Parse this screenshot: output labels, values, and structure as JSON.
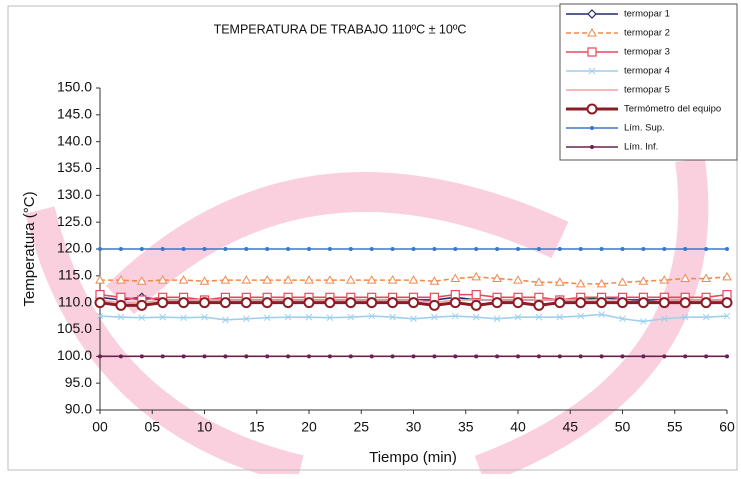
{
  "chart_data": {
    "type": "line",
    "title": "TEMPERATURA DE TRABAJO  110ºC ± 10ºC",
    "x_label": "Tiempo (min)",
    "y_label": "Temperatura (°C)",
    "x": [
      0,
      2,
      4,
      6,
      8,
      10,
      12,
      14,
      16,
      18,
      20,
      22,
      24,
      26,
      28,
      30,
      32,
      34,
      36,
      38,
      40,
      42,
      44,
      46,
      48,
      50,
      52,
      54,
      56,
      58,
      60
    ],
    "xlim": [
      0,
      60
    ],
    "xticks": [
      {
        "value": 0,
        "label": "00"
      },
      {
        "value": 5,
        "label": "05"
      },
      10,
      15,
      20,
      25,
      30,
      35,
      40,
      45,
      50,
      55,
      60
    ],
    "ylim": [
      90,
      150
    ],
    "yticks": [
      {
        "value": 90,
        "label": "90.0"
      },
      {
        "value": 95,
        "label": "95.0"
      },
      {
        "value": 100,
        "label": "100.0"
      },
      {
        "value": 105,
        "label": "105.0"
      },
      {
        "value": 110,
        "label": "110.0"
      },
      {
        "value": 115,
        "label": "115.0"
      },
      {
        "value": 120,
        "label": "120.0"
      },
      {
        "value": 125,
        "label": "125.0"
      },
      {
        "value": 130,
        "label": "130.0"
      },
      {
        "value": 135,
        "label": "135.0"
      },
      {
        "value": 140,
        "label": "140.0"
      },
      {
        "value": 145,
        "label": "145.0"
      },
      {
        "value": 150,
        "label": "150.0"
      }
    ],
    "grid": false,
    "legend": "top-right",
    "series": [
      {
        "name": "termopar 1",
        "color": "#1f2a6b",
        "marker": "diamond",
        "dash": false,
        "values": [
          111,
          110.5,
          111,
          110.5,
          110.5,
          110.5,
          110.5,
          110.5,
          110.5,
          110.5,
          110.5,
          110.5,
          110.5,
          110.5,
          110.5,
          110.5,
          110.5,
          111,
          110.5,
          110.5,
          110.5,
          110.5,
          110.5,
          110.5,
          111,
          110.5,
          110.5,
          110.5,
          110.5,
          110.5,
          110.5
        ]
      },
      {
        "name": "termopar 2",
        "color": "#f08a50",
        "marker": "triangle",
        "dash": true,
        "values": [
          114.2,
          114.2,
          114,
          114.2,
          114.2,
          114,
          114.2,
          114.2,
          114.2,
          114.2,
          114.2,
          114.2,
          114.2,
          114.2,
          114.2,
          114.2,
          114,
          114.5,
          114.8,
          114.5,
          114.2,
          113.8,
          113.8,
          113.5,
          113.5,
          113.8,
          114,
          114.2,
          114.5,
          114.5,
          114.8
        ]
      },
      {
        "name": "termopar 3",
        "color": "#e8485a",
        "marker": "square",
        "dash": false,
        "values": [
          111.5,
          111,
          110.5,
          111,
          111,
          110.5,
          111,
          111,
          111,
          111,
          111,
          111,
          111,
          111,
          111,
          111,
          111,
          111.5,
          111.5,
          111,
          111,
          111,
          110.5,
          111,
          111,
          111,
          111,
          111,
          111,
          111,
          111.5
        ]
      },
      {
        "name": "termopar 4",
        "color": "#9fd0ee",
        "marker": "x",
        "dash": false,
        "values": [
          107.5,
          107.3,
          107.2,
          107.3,
          107.2,
          107.3,
          106.8,
          107,
          107.2,
          107.3,
          107.3,
          107.2,
          107.3,
          107.5,
          107.3,
          107,
          107.3,
          107.5,
          107.3,
          107,
          107.3,
          107.3,
          107.3,
          107.5,
          107.8,
          107,
          106.5,
          107,
          107.3,
          107.3,
          107.5
        ]
      },
      {
        "name": "termopar 5",
        "color": "#f4a0a8",
        "marker": "none",
        "dash": false,
        "values": [
          110.5,
          110,
          110,
          110.5,
          110.5,
          110.5,
          110.5,
          110.5,
          110.5,
          110.5,
          110.5,
          110.5,
          110.5,
          110.5,
          110.5,
          110.5,
          110,
          110.5,
          110.5,
          110.5,
          110.5,
          110.5,
          110.5,
          110.5,
          110.5,
          110.5,
          110,
          110.5,
          110.5,
          110.5,
          110.5
        ]
      },
      {
        "name": "Termómetro del equipo",
        "color": "#8b1c24",
        "marker": "circle",
        "dash": false,
        "values": [
          110,
          109.5,
          109.5,
          110,
          110,
          110,
          110,
          110,
          110,
          110,
          110,
          110,
          110,
          110,
          110,
          110,
          109.5,
          110,
          109.5,
          110,
          110,
          109.5,
          110,
          110,
          110,
          110,
          110,
          110,
          110,
          110,
          110
        ]
      },
      {
        "name": "Lím. Sup.",
        "color": "#3a78c8",
        "marker": "dot",
        "dash": false,
        "values": [
          120,
          120,
          120,
          120,
          120,
          120,
          120,
          120,
          120,
          120,
          120,
          120,
          120,
          120,
          120,
          120,
          120,
          120,
          120,
          120,
          120,
          120,
          120,
          120,
          120,
          120,
          120,
          120,
          120,
          120,
          120
        ]
      },
      {
        "name": "Lím. Inf.",
        "color": "#6b2050",
        "marker": "dot",
        "dash": false,
        "values": [
          100,
          100,
          100,
          100,
          100,
          100,
          100,
          100,
          100,
          100,
          100,
          100,
          100,
          100,
          100,
          100,
          100,
          100,
          100,
          100,
          100,
          100,
          100,
          100,
          100,
          100,
          100,
          100,
          100,
          100,
          100
        ]
      }
    ]
  }
}
